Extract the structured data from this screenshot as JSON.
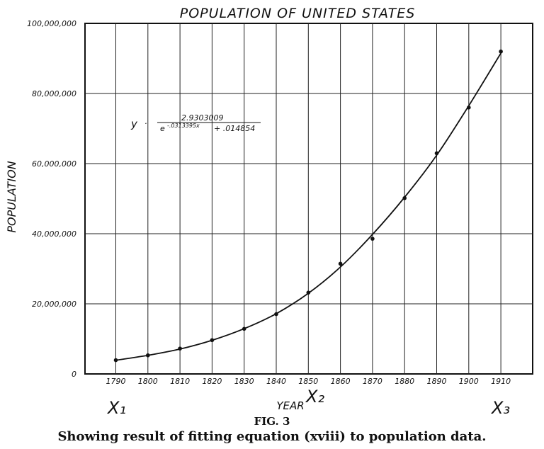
{
  "chart_data": {
    "type": "scatter",
    "title": "POPULATION OF UNITED STATES",
    "xlabel": "YEAR",
    "ylabel": "POPULATION",
    "x_ticks": [
      "1790",
      "1800",
      "1810",
      "1820",
      "1830",
      "1840",
      "1850",
      "1860",
      "1870",
      "1880",
      "1890",
      "1900",
      "1910"
    ],
    "y_ticks": [
      "0",
      "20,000,000",
      "40,000,000",
      "60,000,000",
      "80,000,000",
      "100,000,000"
    ],
    "xlim": [
      1780,
      1920
    ],
    "ylim": [
      0,
      100000000
    ],
    "grid": true,
    "series": [
      {
        "x": [
          1790,
          1800,
          1810,
          1820,
          1830,
          1840,
          1850,
          1860,
          1870,
          1880,
          1890,
          1900,
          1910
        ],
        "y": [
          3929214,
          5308483,
          7239881,
          9638453,
          12866020,
          17069453,
          23191876,
          31443321,
          38558371,
          50155783,
          62947714,
          75994575,
          91972266
        ]
      }
    ],
    "fitted_curve": {
      "x": [
        1790,
        1800,
        1810,
        1820,
        1830,
        1840,
        1850,
        1860,
        1870,
        1880,
        1890,
        1900,
        1910
      ],
      "y": [
        3900000,
        5300000,
        7100000,
        9600000,
        12900000,
        17200000,
        23000000,
        30500000,
        39800000,
        50400000,
        62400000,
        76500000,
        91500000
      ]
    },
    "equation": {
      "lhs": "y",
      "numerator": "2.9303009",
      "denominator_base": "e",
      "exponent": "-.0313395x",
      "denominator_tail": "+ .014854"
    },
    "markers": [
      "X₁",
      "X₂",
      "X₃"
    ]
  },
  "figure": {
    "label": "FIG. 3",
    "caption": "Showing result of fitting equation (xviii) to population data."
  }
}
